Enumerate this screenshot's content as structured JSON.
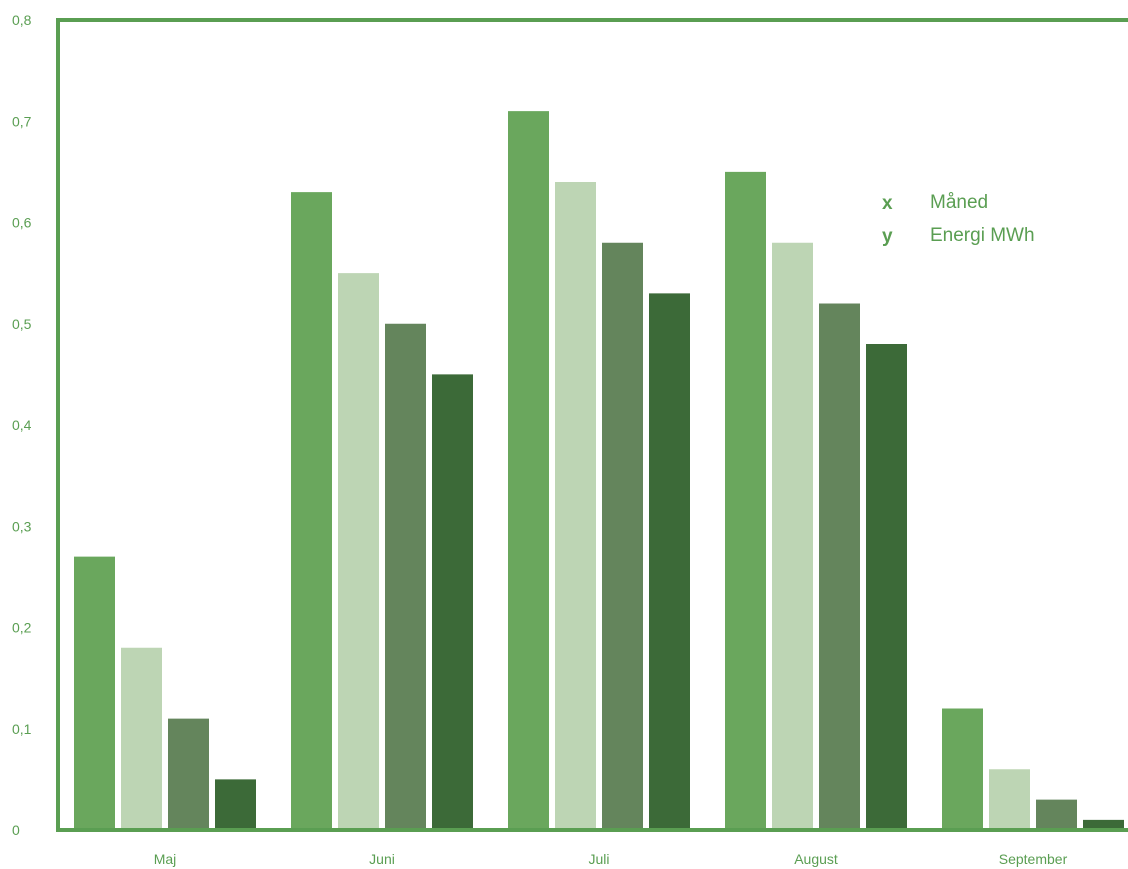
{
  "chart_data": {
    "type": "bar",
    "categories": [
      "Maj",
      "Juni",
      "Juli",
      "August",
      "September"
    ],
    "series": [
      {
        "color": "#6aa75d",
        "values": [
          0.27,
          0.63,
          0.71,
          0.65,
          0.12
        ]
      },
      {
        "color": "#bdd5b4",
        "values": [
          0.18,
          0.55,
          0.64,
          0.58,
          0.06
        ]
      },
      {
        "color": "#64855c",
        "values": [
          0.11,
          0.5,
          0.58,
          0.52,
          0.03
        ]
      },
      {
        "color": "#3c6a38",
        "values": [
          0.05,
          0.45,
          0.53,
          0.48,
          0.01
        ]
      }
    ],
    "ylim": [
      0,
      0.8
    ],
    "yticks": [
      "0",
      "0,1",
      "0,2",
      "0,3",
      "0,4",
      "0,5",
      "0,6",
      "0,7",
      "0,8"
    ],
    "grid": false,
    "legend": [
      {
        "key": "x",
        "label": "Måned"
      },
      {
        "key": "y",
        "label": "Energi MWh"
      }
    ],
    "axis_color": "#5a9e52",
    "text_color": "#5a9e52"
  }
}
